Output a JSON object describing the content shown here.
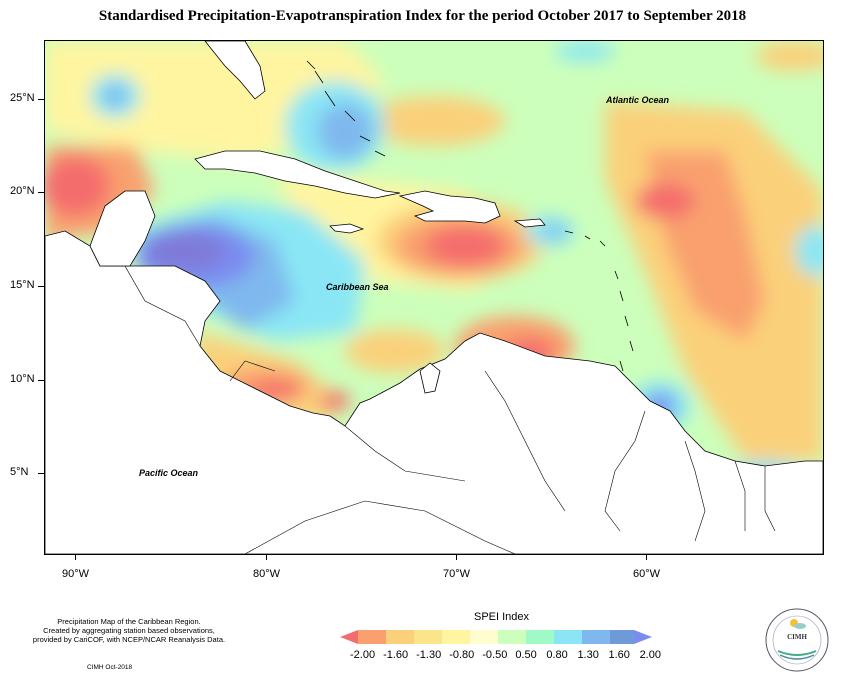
{
  "title": "Standardised Precipitation-Evapotranspiration Index for the period October 2017 to September 2018",
  "latitudes": [
    "25°N",
    "20°N",
    "15°N",
    "10°N",
    "5°N"
  ],
  "longitudes": [
    "90°W",
    "80°W",
    "70°W",
    "60°W"
  ],
  "ocean_labels": {
    "atlantic": "Atlantic Ocean",
    "caribbean": "Caribbean Sea",
    "pacific": "Pacific Ocean"
  },
  "notes": [
    "Precipitation Map of the Caribbean Region.",
    "Created by aggregating station based observations,",
    "provided by CariCOF, with NCEP/NCAR Reanalysis Data."
  ],
  "credit": "CIMH Oct-2018",
  "legend": {
    "title": "SPEI Index",
    "labels": [
      "-2.00",
      "-1.60",
      "-1.30",
      "-0.80",
      "-0.50",
      "0.50",
      "0.80",
      "1.30",
      "1.60",
      "2.00"
    ],
    "colors": [
      "#f46d6d",
      "#f9a06e",
      "#fbd07a",
      "#fff5a0",
      "#fffccf",
      "#ccffbb",
      "#a0fac8",
      "#8ae6f5",
      "#7fb8ee",
      "#7a8cf0",
      "#7f7ad8"
    ]
  },
  "logo": {
    "name": "CIMH",
    "icon": "sun-cloud-logo-icon"
  }
}
